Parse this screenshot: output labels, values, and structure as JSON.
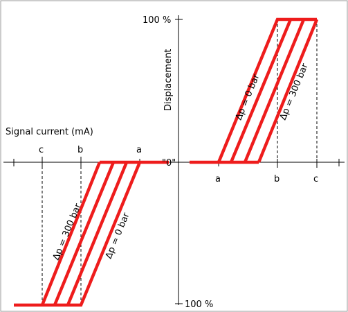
{
  "diagram": {
    "y_axis_title": "Displacement",
    "y_top_label": "100 %",
    "y_bottom_label": "100 %",
    "x_axis_title": "Signal current (mA)",
    "origin_label": "\"0\"",
    "right_tick_labels": {
      "a": "a",
      "b": "b",
      "c": "c"
    },
    "left_tick_labels": {
      "a": "a",
      "b": "b",
      "c": "c"
    },
    "upper_curve_labels": {
      "zero": "Δp = 0 bar",
      "max": "Δp = 300 bar"
    },
    "lower_curve_labels": {
      "zero": "Δp = 0 bar",
      "max": "Δp = 300 bar"
    },
    "colors": {
      "curve": "#ee1c1c",
      "axis": "#000000",
      "frame": "#9a9a9a"
    }
  }
}
